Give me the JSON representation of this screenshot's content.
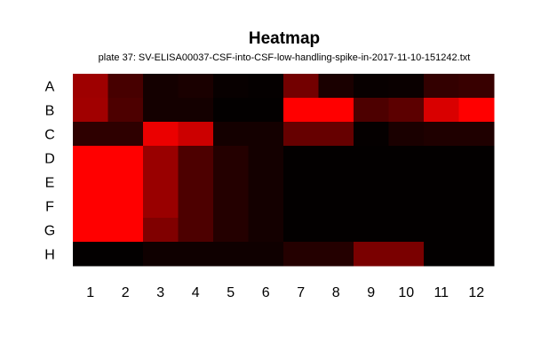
{
  "chart_data": {
    "type": "heatmap",
    "title": "Heatmap",
    "subtitle": "plate 37: SV-ELISA00037-CSF-into-CSF-low-handling-spike-in-2017-11-10-151242.txt",
    "rows": [
      "A",
      "B",
      "C",
      "D",
      "E",
      "F",
      "G",
      "H"
    ],
    "columns": [
      "1",
      "2",
      "3",
      "4",
      "5",
      "6",
      "7",
      "8",
      "9",
      "10",
      "11",
      "12"
    ],
    "color_scale": {
      "low": "#000000",
      "high": "#ff0000"
    },
    "values": [
      [
        0.62,
        0.28,
        0.08,
        0.1,
        0.03,
        0.02,
        0.45,
        0.1,
        0.03,
        0.04,
        0.2,
        0.22
      ],
      [
        0.63,
        0.3,
        0.08,
        0.08,
        0.01,
        0.01,
        1.0,
        1.0,
        0.3,
        0.36,
        0.85,
        1.0
      ],
      [
        0.18,
        0.18,
        0.92,
        0.8,
        0.08,
        0.08,
        0.4,
        0.4,
        0.02,
        0.1,
        0.12,
        0.12
      ],
      [
        1.0,
        1.0,
        0.6,
        0.3,
        0.14,
        0.08,
        0.01,
        0.01,
        0.01,
        0.01,
        0.01,
        0.01
      ],
      [
        1.0,
        1.0,
        0.6,
        0.3,
        0.14,
        0.08,
        0.01,
        0.01,
        0.01,
        0.01,
        0.01,
        0.01
      ],
      [
        1.0,
        1.0,
        0.6,
        0.3,
        0.14,
        0.08,
        0.01,
        0.01,
        0.01,
        0.01,
        0.01,
        0.01
      ],
      [
        1.0,
        1.0,
        0.5,
        0.3,
        0.14,
        0.08,
        0.01,
        0.01,
        0.01,
        0.01,
        0.01,
        0.01
      ],
      [
        0.01,
        0.01,
        0.06,
        0.06,
        0.06,
        0.06,
        0.14,
        0.14,
        0.48,
        0.48,
        0.01,
        0.01
      ]
    ]
  }
}
